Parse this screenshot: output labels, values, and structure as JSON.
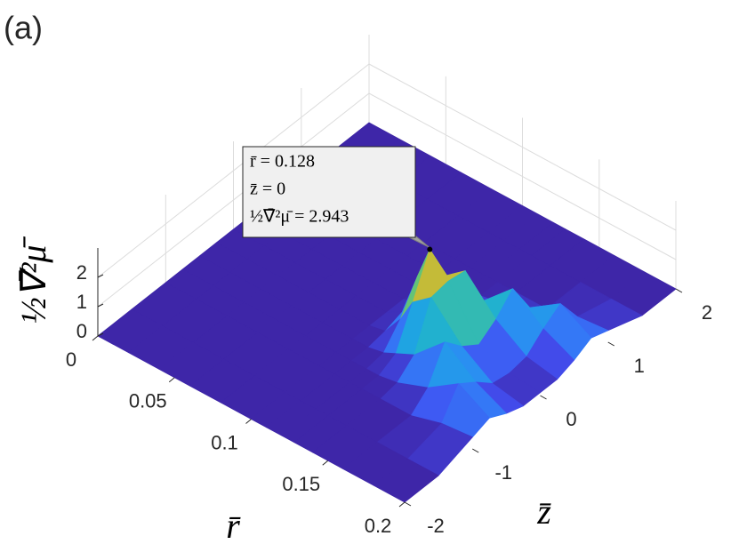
{
  "chart_data": {
    "type": "surface",
    "panel_label": "(a)",
    "xlabel": "r̄",
    "ylabel": "z̄",
    "zlabel": "½∇̄²μ̄",
    "xlim": [
      0,
      0.2
    ],
    "xticks": [
      0,
      0.05,
      0.1,
      0.15,
      0.2
    ],
    "ylim": [
      -2,
      2
    ],
    "yticks": [
      -2,
      -1,
      0,
      1,
      2
    ],
    "zlim": [
      0,
      3
    ],
    "zticks": [
      0,
      1,
      2
    ],
    "grid": true,
    "colormap": [
      "#3e26a8",
      "#4250f2",
      "#2e87f7",
      "#1aaedb",
      "#4bc58c",
      "#b0bd39",
      "#feb734",
      "#f9fb0e"
    ],
    "x": [
      0,
      0.02,
      0.04,
      0.06,
      0.08,
      0.1,
      0.11,
      0.12,
      0.128,
      0.14,
      0.16,
      0.18,
      0.2
    ],
    "y": [
      -2,
      -1.5,
      -1,
      -0.75,
      -0.5,
      -0.25,
      0,
      0.25,
      0.5,
      0.75,
      1,
      1.5,
      2
    ],
    "z": [
      [
        0,
        0,
        0,
        0,
        0,
        0,
        0,
        0,
        0,
        0,
        0,
        0,
        0
      ],
      [
        0,
        0,
        0,
        0,
        0,
        0,
        0,
        0,
        0,
        0,
        0,
        0,
        0
      ],
      [
        0,
        0,
        0,
        0,
        0,
        0,
        0,
        0,
        0,
        0,
        0,
        0,
        0
      ],
      [
        0,
        0,
        0,
        0,
        0,
        0,
        0,
        0,
        0,
        0,
        0,
        0,
        0
      ],
      [
        0,
        0,
        0,
        0,
        0,
        0,
        0,
        0,
        0,
        0,
        0,
        0,
        0
      ],
      [
        0,
        0,
        0,
        0,
        0,
        0,
        0,
        0,
        0,
        0,
        0,
        0,
        0
      ],
      [
        0,
        0,
        0,
        0,
        0,
        0.1,
        0.3,
        0.1,
        0,
        0,
        0,
        0,
        0
      ],
      [
        0,
        0,
        0,
        0,
        0.1,
        0.8,
        1.8,
        0.8,
        0.1,
        0,
        0,
        0,
        0
      ],
      [
        0,
        0,
        0,
        0,
        0.3,
        1.6,
        2.943,
        1.6,
        0.3,
        0,
        0,
        0,
        0
      ],
      [
        0,
        0,
        0,
        0.1,
        0.6,
        2.1,
        2.2,
        2.1,
        0.6,
        0.1,
        0,
        0,
        0
      ],
      [
        0,
        0,
        0,
        0.5,
        1.6,
        1.0,
        0.6,
        1.0,
        1.6,
        0.5,
        0,
        0,
        0
      ],
      [
        0,
        0,
        0.3,
        1.2,
        0.8,
        0.3,
        0.2,
        0.3,
        0.8,
        1.2,
        0.3,
        0,
        0
      ],
      [
        0,
        0,
        0.4,
        0.6,
        0.3,
        0.1,
        0.1,
        0.1,
        0.3,
        0.6,
        0.4,
        0,
        0
      ]
    ],
    "datatip": {
      "x": 0.128,
      "y": 0,
      "z": 2.943,
      "labels": [
        "r̄ = 0.128",
        "z̄ = 0",
        "½∇̄²μ̄ = 2.943"
      ]
    }
  }
}
